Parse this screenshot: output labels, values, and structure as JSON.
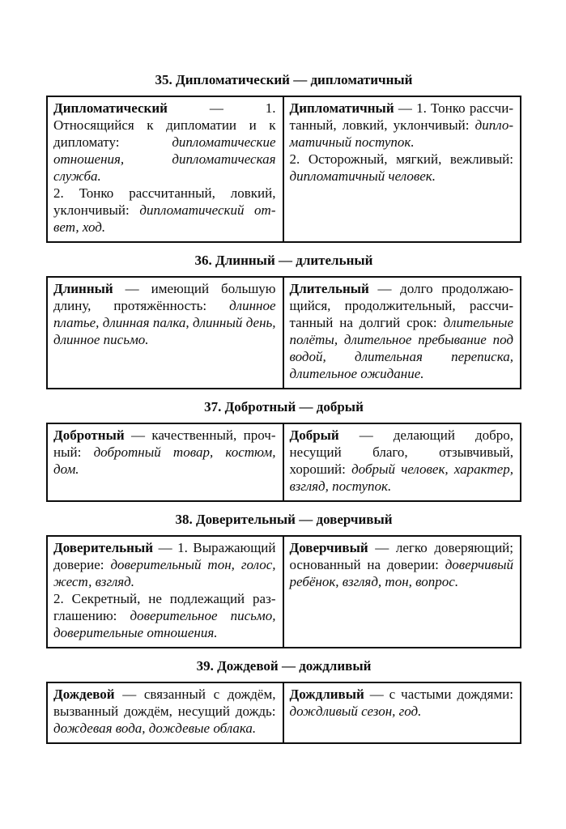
{
  "page": {
    "background": "#ffffff",
    "text_color": "#0d0d0d",
    "border_color": "#0d0d0d"
  },
  "sections": [
    {
      "title": "35. Дипломатический — дипломатичный",
      "left": [
        [
          {
            "s": "b",
            "t": "Дипломатический"
          },
          {
            "s": "",
            "t": " — 1. Относящийся к дипломатии и к дипломату: "
          },
          {
            "s": "i",
            "t": "дипло­матические отношения, дипломати­ческая служба."
          }
        ],
        [
          {
            "s": "",
            "t": "2. Тонко рассчитанный, ловкий, уклончивый: "
          },
          {
            "s": "i",
            "t": "дипломатический от­вет, ход."
          }
        ]
      ],
      "right": [
        [
          {
            "s": "b",
            "t": "Дипломатичный"
          },
          {
            "s": "",
            "t": " — 1. Тонко рассчи­танный, ловкий, уклончивый: "
          },
          {
            "s": "i",
            "t": "дипло­матичный поступок."
          }
        ],
        [
          {
            "s": "",
            "t": "2. Осторожный, мягкий, вежливый: "
          },
          {
            "s": "i",
            "t": "дипломатичный человек."
          }
        ]
      ]
    },
    {
      "title": "36. Длинный — длительный",
      "left": [
        [
          {
            "s": "b",
            "t": "Длинный"
          },
          {
            "s": "",
            "t": " — имеющий большую дли­ну, протяжённость: "
          },
          {
            "s": "i",
            "t": "длинное платье, длинная палка, длинный день, длинное письмо."
          }
        ]
      ],
      "right": [
        [
          {
            "s": "b",
            "t": "Длительный"
          },
          {
            "s": "",
            "t": " — долго продолжаю­щийся, продолжительный, рассчи­танный на долгий срок: "
          },
          {
            "s": "i",
            "t": "длительные полёты, длительное пребывание под водой, длительная переписка, длитель­ное ожидание."
          }
        ]
      ]
    },
    {
      "title": "37. Добротный — добрый",
      "left": [
        [
          {
            "s": "b",
            "t": "Добротный"
          },
          {
            "s": "",
            "t": " — качественный, проч­ный: "
          },
          {
            "s": "i",
            "t": "добротный товар, костюм, дом."
          }
        ]
      ],
      "right": [
        [
          {
            "s": "b",
            "t": "Добрый"
          },
          {
            "s": "",
            "t": " — делающий добро, несущий благо, отзывчивый, хороший: "
          },
          {
            "s": "i",
            "t": "добрый человек, характер, взгляд, поступок."
          }
        ]
      ]
    },
    {
      "title": "38. Доверительный — доверчивый",
      "left": [
        [
          {
            "s": "b",
            "t": "Доверительный"
          },
          {
            "s": "",
            "t": " — 1. Выражающий доверие: "
          },
          {
            "s": "i",
            "t": "доверительный тон, голос, жест, взгляд."
          }
        ],
        [
          {
            "s": "",
            "t": "2. Секретный, не подлежащий раз­глашению: "
          },
          {
            "s": "i",
            "t": "доверительное письмо, до­верительные отношения."
          }
        ]
      ],
      "right": [
        [
          {
            "s": "b",
            "t": "Доверчивый"
          },
          {
            "s": "",
            "t": " — легко доверяющий; основанный на доверии: "
          },
          {
            "s": "i",
            "t": "доверчивый ребёнок, взгляд, тон, вопрос."
          }
        ]
      ]
    },
    {
      "title": "39. Дождевой — дождливый",
      "left": [
        [
          {
            "s": "b",
            "t": "Дождевой"
          },
          {
            "s": "",
            "t": " — связанный с дождём, вызванный дождём, несущий дождь: "
          },
          {
            "s": "i",
            "t": "дождевая вода, дождевые облака."
          }
        ]
      ],
      "right": [
        [
          {
            "s": "b",
            "t": "Дождливый"
          },
          {
            "s": "",
            "t": " — с частыми дождями: "
          },
          {
            "s": "i",
            "t": "дождливый сезон, год."
          }
        ]
      ]
    }
  ]
}
